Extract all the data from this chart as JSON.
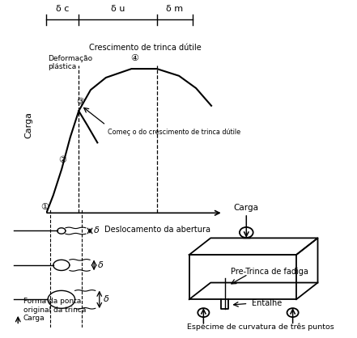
{
  "fig_width": 4.41,
  "fig_height": 4.18,
  "dpi": 100,
  "bg_color": "#ffffff",
  "labels": {
    "carga_ylabel": "Carga",
    "deslocamento_xlabel": "Deslocamento da abertura",
    "crescimento_ductil": "Crescimento de trinca dútile",
    "comeco_crescimento": "Começ o do crescimento de trinca dútile",
    "deformacao_plastica": "Deformação\nplástica",
    "delta_c": "δ c",
    "delta_u": "δ u",
    "delta_m": "δ m",
    "forma_ponta": "Forma da ponta\noriginal da trinca\nCarga",
    "carga_specimen": "Carga",
    "pre_trinca": "Pre-Trinca de fadiga",
    "entalhe": "Entalhe",
    "especime": "Espécime de curvatura de três puntos"
  },
  "circled_numbers": [
    "①",
    "②",
    "③",
    "④"
  ]
}
